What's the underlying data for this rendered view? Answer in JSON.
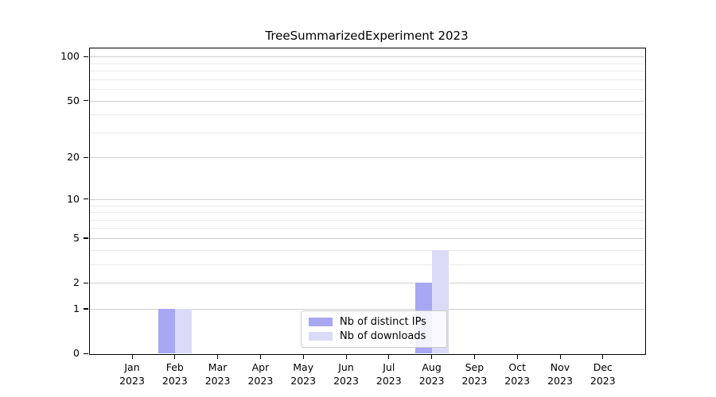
{
  "title": "TreeSummarizedExperiment 2023",
  "chart_data": {
    "type": "bar",
    "title": "TreeSummarizedExperiment 2023",
    "xlabel": "",
    "ylabel": "",
    "categories": [
      "Jan 2023",
      "Feb 2023",
      "Mar 2023",
      "Apr 2023",
      "May 2023",
      "Jun 2023",
      "Jul 2023",
      "Aug 2023",
      "Sep 2023",
      "Oct 2023",
      "Nov 2023",
      "Dec 2023"
    ],
    "series": [
      {
        "name": "Nb of distinct IPs",
        "color": "#a7a7f2",
        "values": [
          0,
          1,
          0,
          0,
          0,
          0,
          0,
          2,
          0,
          0,
          0,
          0
        ]
      },
      {
        "name": "Nb of downloads",
        "color": "#dbdbf8",
        "values": [
          0,
          1,
          0,
          0,
          0,
          0,
          0,
          4,
          0,
          0,
          0,
          0
        ]
      }
    ],
    "yscale": "log1p",
    "yticks": [
      0,
      1,
      2,
      5,
      10,
      20,
      50,
      100
    ],
    "y_minor_gridlines": [
      3,
      4,
      6,
      7,
      8,
      9,
      30,
      40,
      60,
      70,
      80,
      90
    ],
    "ylim": [
      0,
      115
    ],
    "grid": true,
    "legend_position": "inside lower center"
  }
}
